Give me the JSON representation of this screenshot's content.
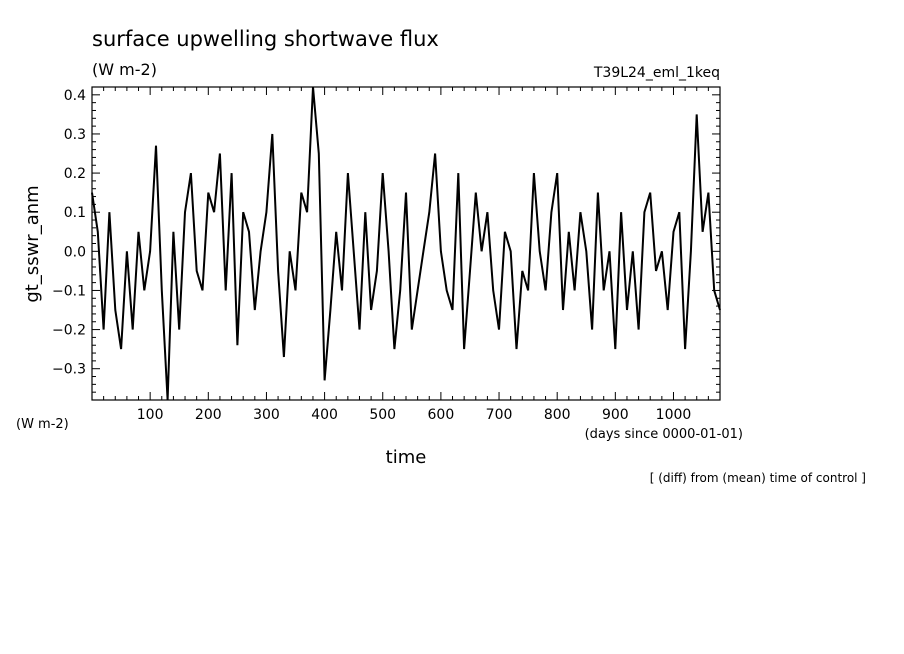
{
  "chart_data": {
    "type": "line",
    "title": "surface upwelling shortwave flux",
    "subtitle": "(W m-2)",
    "run_label": "T39L24_eml_1keq",
    "ylabel": "gt_sswr_anm",
    "yunit": "(W m-2)",
    "xlabel": "time",
    "xunit": "(days since 0000-01-01)",
    "note": "[ (diff) from (mean) time of control ]",
    "xlim": [
      0,
      1080
    ],
    "ylim": [
      -0.38,
      0.42
    ],
    "xticks": [
      100,
      200,
      300,
      400,
      500,
      600,
      700,
      800,
      900,
      1000
    ],
    "yticks": [
      -0.3,
      -0.2,
      -0.1,
      0.0,
      0.1,
      0.2,
      0.3,
      0.4
    ],
    "ytick_labels": [
      "−0.3",
      "−0.2",
      "−0.1",
      "0.0",
      "0.1",
      "0.2",
      "0.3",
      "0.4"
    ],
    "series": [
      {
        "x": [
          0,
          10,
          20,
          30,
          40,
          50,
          60,
          70,
          80,
          90,
          100,
          110,
          120,
          130,
          140,
          150,
          160,
          170,
          180,
          190,
          200,
          210,
          220,
          230,
          240,
          250,
          260,
          270,
          280,
          290,
          300,
          310,
          320,
          330,
          340,
          350,
          360,
          370,
          380,
          390,
          400,
          410,
          420,
          430,
          440,
          450,
          460,
          470,
          480,
          490,
          500,
          510,
          520,
          530,
          540,
          550,
          560,
          570,
          580,
          590,
          600,
          610,
          620,
          630,
          640,
          650,
          660,
          670,
          680,
          690,
          700,
          710,
          720,
          730,
          740,
          750,
          760,
          770,
          780,
          790,
          800,
          810,
          820,
          830,
          840,
          850,
          860,
          870,
          880,
          890,
          900,
          910,
          920,
          930,
          940,
          950,
          960,
          970,
          980,
          990,
          1000,
          1010,
          1020,
          1030,
          1040,
          1050,
          1060,
          1070,
          1080
        ],
        "y": [
          0.15,
          0.05,
          -0.2,
          0.1,
          -0.15,
          -0.25,
          0.0,
          -0.2,
          0.05,
          -0.1,
          0.0,
          0.27,
          -0.1,
          -0.38,
          0.05,
          -0.2,
          0.1,
          0.2,
          -0.05,
          -0.1,
          0.15,
          0.1,
          0.25,
          -0.1,
          0.2,
          -0.24,
          0.1,
          0.05,
          -0.15,
          0.0,
          0.1,
          0.3,
          -0.05,
          -0.27,
          0.0,
          -0.1,
          0.15,
          0.1,
          0.42,
          0.25,
          -0.33,
          -0.15,
          0.05,
          -0.1,
          0.2,
          0.0,
          -0.2,
          0.1,
          -0.15,
          -0.05,
          0.2,
          0.0,
          -0.25,
          -0.1,
          0.15,
          -0.2,
          -0.1,
          0.0,
          0.1,
          0.25,
          0.0,
          -0.1,
          -0.15,
          0.2,
          -0.25,
          -0.05,
          0.15,
          0.0,
          0.1,
          -0.1,
          -0.2,
          0.05,
          0.0,
          -0.25,
          -0.05,
          -0.1,
          0.2,
          0.0,
          -0.1,
          0.1,
          0.2,
          -0.15,
          0.05,
          -0.1,
          0.1,
          0.0,
          -0.2,
          0.15,
          -0.1,
          0.0,
          -0.25,
          0.1,
          -0.15,
          0.0,
          -0.2,
          0.1,
          0.15,
          -0.05,
          0.0,
          -0.15,
          0.05,
          0.1,
          -0.25,
          0.0,
          0.35,
          0.05,
          0.15,
          -0.1,
          -0.15
        ]
      }
    ]
  }
}
